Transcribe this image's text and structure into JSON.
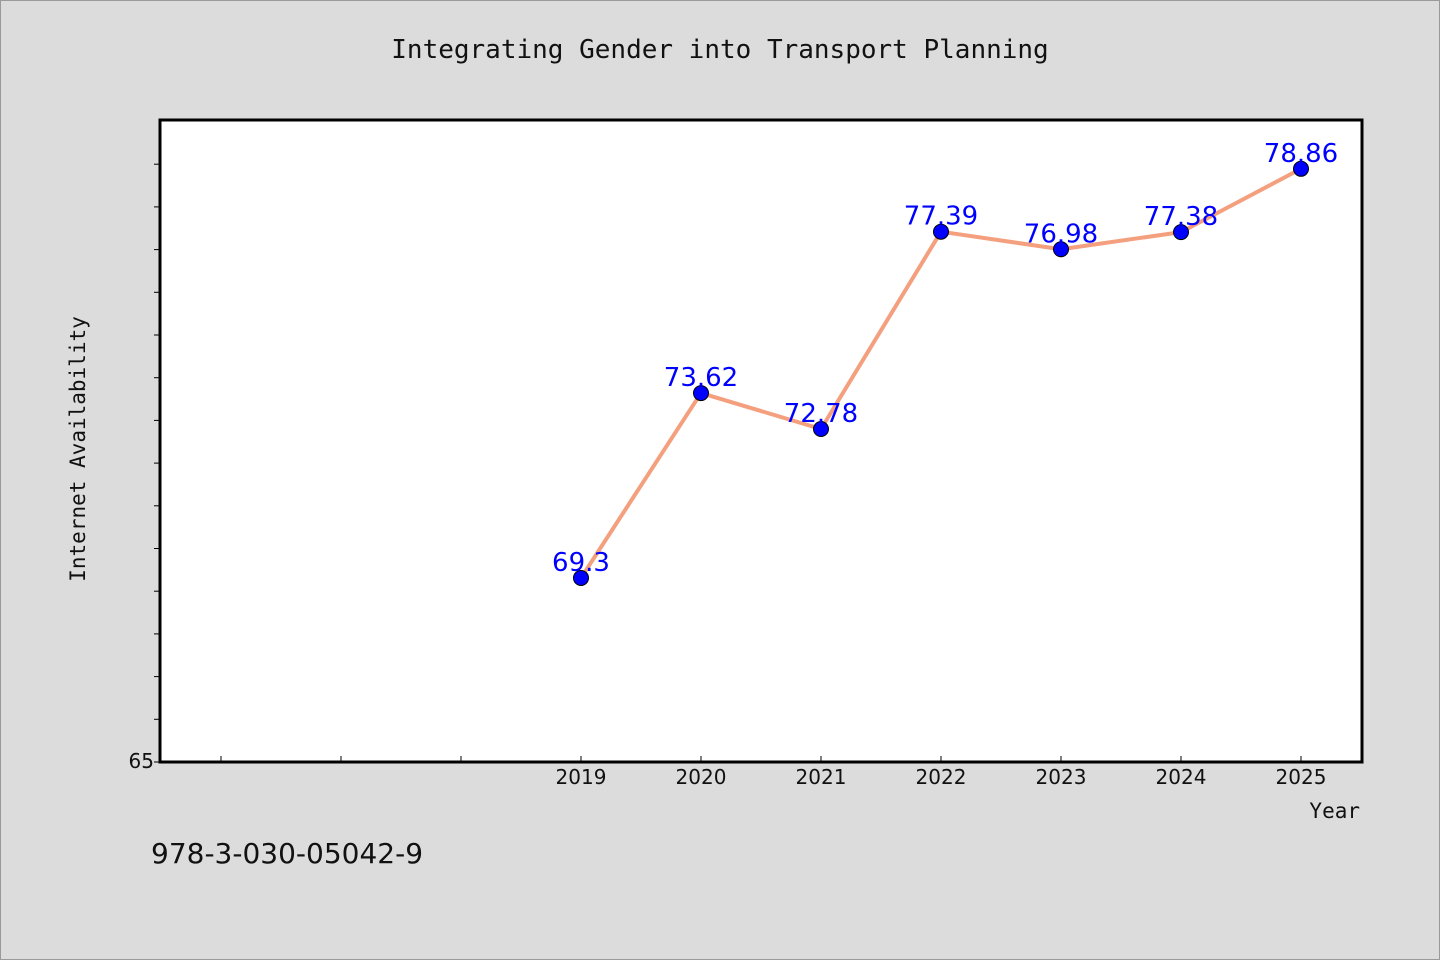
{
  "chart_data": {
    "type": "line",
    "title": "Integrating Gender into Transport Planning",
    "xlabel": "Year",
    "ylabel": "Internet Availability",
    "x": [
      "2019",
      "2020",
      "2021",
      "2022",
      "2023",
      "2024",
      "2025"
    ],
    "series": [
      {
        "values": [
          69.3,
          73.62,
          72.78,
          77.39,
          76.98,
          77.38,
          78.86
        ],
        "labels": [
          "69.3",
          "73.62",
          "72.78",
          "77.39",
          "76.98",
          "77.38",
          "78.86"
        ]
      }
    ],
    "x_slots": 10,
    "y_tick_labels": [
      "65"
    ],
    "ylim": [
      65,
      80
    ],
    "grid": false,
    "line_color": "#f4a07e",
    "marker_color": "#0000ff",
    "label_color": "#0000ff",
    "background_color": "#dcdcdc",
    "plot_background_color": "#ffffff"
  },
  "footer": {
    "identifier": "978-3-030-05042-9"
  }
}
